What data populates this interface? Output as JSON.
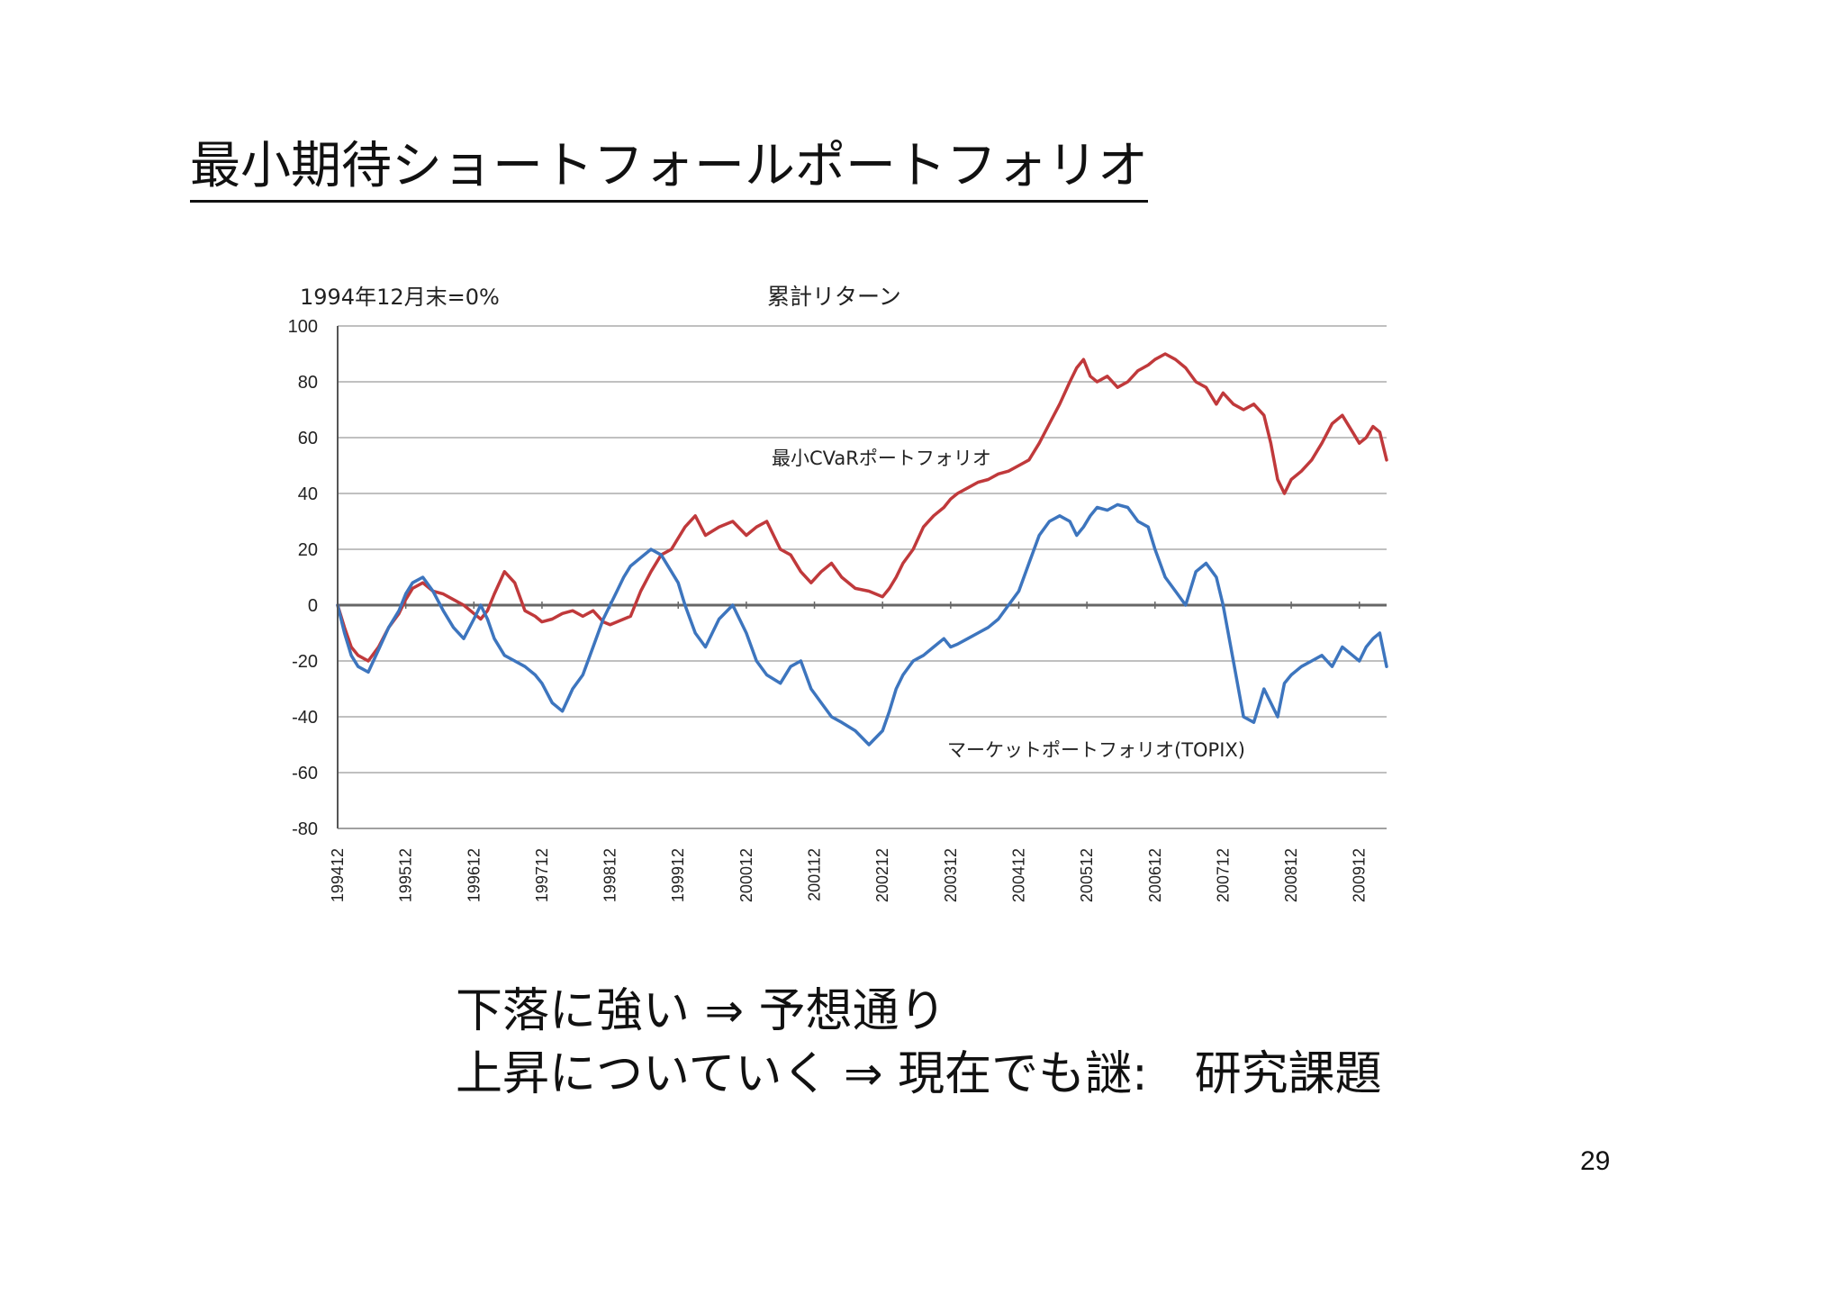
{
  "slide": {
    "title": "最小期待ショートフォールポートフォリオ",
    "notes": [
      "下落に強い ⇒ 予想通り",
      "上昇についていく ⇒ 現在でも謎:　研究課題"
    ],
    "page_number": "29"
  },
  "chart_data": {
    "type": "line",
    "title": "累計リターン",
    "subtitle": "1994年12月末=0%",
    "xlabel": "",
    "ylabel": "",
    "ylim": [
      -80,
      100
    ],
    "yticks": [
      100,
      80,
      60,
      40,
      20,
      0,
      -20,
      -40,
      -60,
      -80
    ],
    "xlim": [
      0,
      15.4
    ],
    "xticks": [
      "199412",
      "199512",
      "199612",
      "199712",
      "199812",
      "199912",
      "200012",
      "200112",
      "200212",
      "200312",
      "200412",
      "200512",
      "200612",
      "200712",
      "200812",
      "200912"
    ],
    "grid": true,
    "legend": "none",
    "series": [
      {
        "name": "最小CVaRポートフォリオ",
        "color": "#c0393b",
        "x": [
          0,
          0.1,
          0.2,
          0.3,
          0.45,
          0.6,
          0.75,
          0.9,
          1.0,
          1.1,
          1.25,
          1.4,
          1.55,
          1.7,
          1.85,
          2.0,
          2.1,
          2.2,
          2.3,
          2.45,
          2.6,
          2.75,
          2.9,
          3.0,
          3.15,
          3.3,
          3.45,
          3.6,
          3.75,
          3.9,
          4.0,
          4.1,
          4.2,
          4.3,
          4.45,
          4.6,
          4.75,
          4.9,
          5.0,
          5.1,
          5.25,
          5.4,
          5.6,
          5.8,
          6.0,
          6.15,
          6.3,
          6.5,
          6.65,
          6.8,
          6.95,
          7.1,
          7.25,
          7.4,
          7.6,
          7.8,
          8.0,
          8.1,
          8.2,
          8.3,
          8.45,
          8.6,
          8.75,
          8.9,
          9.0,
          9.1,
          9.25,
          9.4,
          9.55,
          9.7,
          9.85,
          10.0,
          10.15,
          10.3,
          10.45,
          10.6,
          10.75,
          10.85,
          10.95,
          11.05,
          11.15,
          11.3,
          11.45,
          11.6,
          11.75,
          11.9,
          12.0,
          12.15,
          12.3,
          12.45,
          12.6,
          12.75,
          12.9,
          13.0,
          13.15,
          13.3,
          13.45,
          13.6,
          13.7,
          13.8,
          13.9,
          14.0,
          14.15,
          14.3,
          14.45,
          14.6,
          14.75,
          14.9,
          15.0,
          15.1,
          15.2,
          15.3,
          15.4
        ],
        "y": [
          0,
          -8,
          -15,
          -18,
          -20,
          -15,
          -8,
          -3,
          2,
          6,
          8,
          5,
          4,
          2,
          0,
          -3,
          -5,
          -2,
          4,
          12,
          8,
          -2,
          -4,
          -6,
          -5,
          -3,
          -2,
          -4,
          -2,
          -6,
          -7,
          -6,
          -5,
          -4,
          5,
          12,
          18,
          20,
          24,
          28,
          32,
          25,
          28,
          30,
          25,
          28,
          30,
          20,
          18,
          12,
          8,
          12,
          15,
          10,
          6,
          5,
          3,
          6,
          10,
          15,
          20,
          28,
          32,
          35,
          38,
          40,
          42,
          44,
          45,
          47,
          48,
          50,
          52,
          58,
          65,
          72,
          80,
          85,
          88,
          82,
          80,
          82,
          78,
          80,
          84,
          86,
          88,
          90,
          88,
          85,
          80,
          78,
          72,
          76,
          72,
          70,
          72,
          68,
          58,
          45,
          40,
          45,
          48,
          52,
          58,
          65,
          68,
          62,
          58,
          60,
          64,
          62,
          52
        ],
        "label": "最小CVaRポートフォリオ"
      },
      {
        "name": "マーケットポートフォリオ(TOPIX)",
        "color": "#3d75be",
        "x": [
          0,
          0.1,
          0.2,
          0.3,
          0.45,
          0.6,
          0.75,
          0.9,
          1.0,
          1.1,
          1.25,
          1.4,
          1.55,
          1.7,
          1.85,
          2.0,
          2.1,
          2.2,
          2.3,
          2.45,
          2.6,
          2.75,
          2.9,
          3.0,
          3.15,
          3.3,
          3.45,
          3.6,
          3.75,
          3.9,
          4.0,
          4.1,
          4.2,
          4.3,
          4.45,
          4.6,
          4.75,
          4.9,
          5.0,
          5.1,
          5.25,
          5.4,
          5.6,
          5.8,
          6.0,
          6.15,
          6.3,
          6.5,
          6.65,
          6.8,
          6.95,
          7.1,
          7.25,
          7.4,
          7.6,
          7.8,
          8.0,
          8.1,
          8.2,
          8.3,
          8.45,
          8.6,
          8.75,
          8.9,
          9.0,
          9.1,
          9.25,
          9.4,
          9.55,
          9.7,
          9.85,
          10.0,
          10.15,
          10.3,
          10.45,
          10.6,
          10.75,
          10.85,
          10.95,
          11.05,
          11.15,
          11.3,
          11.45,
          11.6,
          11.75,
          11.9,
          12.0,
          12.15,
          12.3,
          12.45,
          12.6,
          12.75,
          12.9,
          13.0,
          13.15,
          13.3,
          13.45,
          13.6,
          13.7,
          13.8,
          13.9,
          14.0,
          14.15,
          14.3,
          14.45,
          14.6,
          14.75,
          14.9,
          15.0,
          15.1,
          15.2,
          15.3,
          15.4
        ],
        "y": [
          0,
          -10,
          -18,
          -22,
          -24,
          -16,
          -8,
          -2,
          4,
          8,
          10,
          5,
          -2,
          -8,
          -12,
          -5,
          0,
          -5,
          -12,
          -18,
          -20,
          -22,
          -25,
          -28,
          -35,
          -38,
          -30,
          -25,
          -15,
          -5,
          0,
          5,
          10,
          14,
          17,
          20,
          18,
          12,
          8,
          0,
          -10,
          -15,
          -5,
          0,
          -10,
          -20,
          -25,
          -28,
          -22,
          -20,
          -30,
          -35,
          -40,
          -42,
          -45,
          -50,
          -45,
          -38,
          -30,
          -25,
          -20,
          -18,
          -15,
          -12,
          -15,
          -14,
          -12,
          -10,
          -8,
          -5,
          0,
          5,
          15,
          25,
          30,
          32,
          30,
          25,
          28,
          32,
          35,
          34,
          36,
          35,
          30,
          28,
          20,
          10,
          5,
          0,
          12,
          15,
          10,
          0,
          -20,
          -40,
          -42,
          -30,
          -35,
          -40,
          -28,
          -25,
          -22,
          -20,
          -18,
          -22,
          -15,
          -18,
          -20,
          -15,
          -12,
          -10,
          -22
        ],
        "label": "マーケットポートフォリオ(TOPIX)"
      }
    ]
  }
}
